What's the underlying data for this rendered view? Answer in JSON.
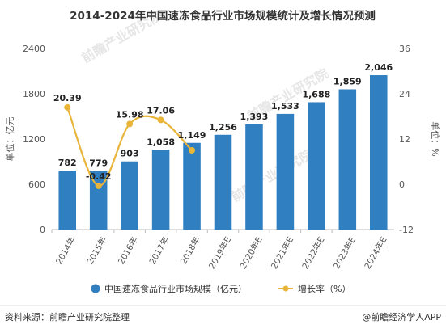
{
  "chart_data": {
    "type": "bar",
    "title": "2014-2024年中国速冻食品行业市场规模统计及增长情况预测",
    "categories": [
      "2014年",
      "2015年",
      "2016年",
      "2017年",
      "2018年",
      "2019年E",
      "2020年E",
      "2021年E",
      "2022年E",
      "2023年E",
      "2024年E"
    ],
    "series": [
      {
        "name": "中国速冻食品行业市场规模（亿元）",
        "type": "bar",
        "axis": "left",
        "color": "#2f7fc1",
        "values": [
          782,
          779,
          903,
          1058,
          1149,
          1256,
          1393,
          1533,
          1688,
          1859,
          2046
        ],
        "labels": [
          "782",
          "779",
          "903",
          "1,058",
          "1,149",
          "1,256",
          "1,393",
          "1,533",
          "1,688",
          "1,859",
          "2,046"
        ]
      },
      {
        "name": "增长率（%）",
        "type": "line",
        "axis": "right",
        "color": "#e8b53a",
        "values": [
          20.39,
          -0.42,
          15.98,
          17.06,
          9.0,
          null,
          null,
          null,
          null,
          null,
          null
        ],
        "labels": [
          "20.39",
          "-0.42",
          "15.98",
          "17.06",
          "",
          "",
          "",
          "",
          "",
          "",
          ""
        ]
      }
    ],
    "ylabel_left": "单位：亿元",
    "ylabel_right": "单位：%",
    "ylim_left": [
      0,
      2400
    ],
    "yticks_left": [
      "0",
      "600",
      "1200",
      "1800",
      "2400"
    ],
    "ylim_right": [
      -12,
      36
    ],
    "yticks_right": [
      "-12",
      "0",
      "12",
      "24",
      "36"
    ],
    "grid": false,
    "legend_position": "bottom"
  },
  "footer": {
    "source": "资料来源：前瞻产业研究院整理",
    "brand": "@前瞻经济学人APP"
  },
  "watermark": "前瞻产业研究院"
}
